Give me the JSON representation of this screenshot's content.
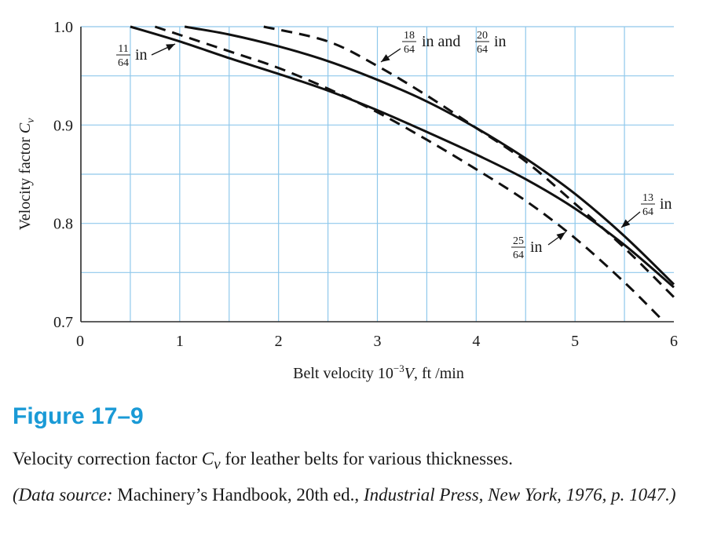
{
  "chart_data": {
    "type": "line",
    "xlabel_prefix": "Belt velocity 10",
    "xlabel_exp": "−3",
    "xlabel_var": "V",
    "xlabel_unit": ", ft /min",
    "ylabel_text": "Velocity factor ",
    "ylabel_var": "C",
    "ylabel_sub": "v",
    "xlim": [
      0,
      6
    ],
    "ylim": [
      0.7,
      1.0
    ],
    "x_ticks": [
      "0",
      "1",
      "2",
      "3",
      "4",
      "5",
      "6"
    ],
    "y_ticks": [
      "0.7",
      "0.8",
      "0.9",
      "1.0"
    ],
    "grid": true,
    "series": [
      {
        "name": "11/64 in",
        "style": "solid",
        "x": [
          0.5,
          1,
          1.5,
          2,
          2.5,
          3,
          3.5,
          4,
          4.5,
          5,
          5.5,
          6
        ],
        "y": [
          1.0,
          0.985,
          0.968,
          0.952,
          0.935,
          0.915,
          0.893,
          0.87,
          0.845,
          0.815,
          0.778,
          0.735
        ]
      },
      {
        "name": "13/64 in",
        "style": "solid",
        "x": [
          1.05,
          1.5,
          2,
          2.5,
          3,
          3.5,
          4,
          4.5,
          5,
          5.5,
          6
        ],
        "y": [
          1.0,
          0.992,
          0.98,
          0.965,
          0.946,
          0.924,
          0.897,
          0.866,
          0.83,
          0.787,
          0.738
        ]
      },
      {
        "name": "18/64 in and 20/64 in",
        "style": "dashed",
        "x": [
          1.85,
          2.5,
          3,
          3.5,
          4,
          4.5,
          5,
          5.5,
          6
        ],
        "y": [
          1.0,
          0.985,
          0.96,
          0.93,
          0.897,
          0.863,
          0.82,
          0.775,
          0.725
        ]
      },
      {
        "name": "25/64 in",
        "style": "dashed",
        "x": [
          0.75,
          1.5,
          2,
          2.5,
          3,
          3.5,
          4,
          4.5,
          5,
          5.5,
          5.9
        ],
        "y": [
          1.0,
          0.975,
          0.958,
          0.937,
          0.913,
          0.885,
          0.855,
          0.823,
          0.785,
          0.74,
          0.7
        ]
      }
    ],
    "annotations": [
      {
        "num": "11",
        "den": "64",
        "unit": "in"
      },
      {
        "num": "18",
        "den": "64",
        "unit": "in and",
        "num2": "20",
        "den2": "64",
        "unit2": "in"
      },
      {
        "num": "13",
        "den": "64",
        "unit": "in"
      },
      {
        "num": "25",
        "den": "64",
        "unit": "in"
      }
    ]
  },
  "figure": {
    "title": "Figure 17–9",
    "caption_line1_a": "Velocity correction factor ",
    "caption_var": "C",
    "caption_sub": "v",
    "caption_line1_b": " for leather belts for various thicknesses.",
    "source_label": "(Data source:",
    "source_mid": " Machinery’s Handbook, 20th ed., ",
    "source_publisher": "Industrial Press, New York, 1976, p. 1047.)"
  },
  "colors": {
    "grid": "#8fc8eb",
    "axis": "#2a2a2a",
    "curve": "#111111",
    "title": "#1a9ad6"
  }
}
